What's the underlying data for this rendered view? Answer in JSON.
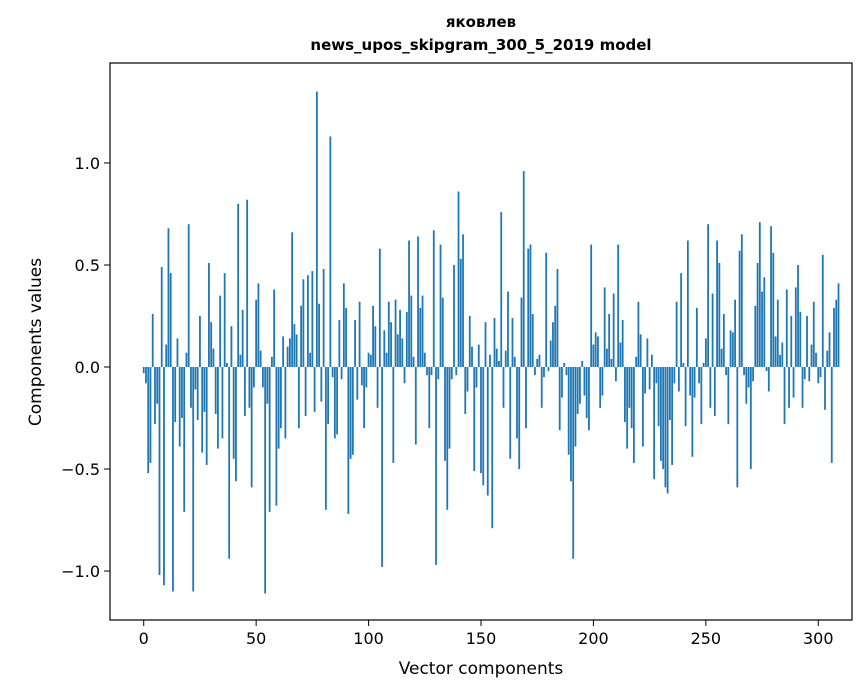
{
  "chart_data": {
    "type": "bar",
    "title_line1": "яковлев",
    "title_line2": "news_upos_skipgram_300_5_2019 model",
    "xlabel": "Vector components",
    "ylabel": "Components values",
    "xlim": [
      -15,
      315
    ],
    "ylim": [
      -1.24,
      1.49
    ],
    "xticks": [
      0,
      50,
      100,
      150,
      200,
      250,
      300
    ],
    "xtick_labels": [
      "0",
      "50",
      "100",
      "150",
      "200",
      "250",
      "300"
    ],
    "yticks": [
      -1.0,
      -0.5,
      0.0,
      0.5,
      1.0
    ],
    "ytick_labels": [
      "−1.0",
      "−0.5",
      "0.0",
      "0.5",
      "1.0"
    ],
    "bar_color": "#1f77b4",
    "grid": false,
    "values": [
      -0.03,
      -0.08,
      -0.52,
      -0.47,
      0.26,
      -0.28,
      -0.18,
      -1.02,
      0.49,
      -1.07,
      0.11,
      0.68,
      0.46,
      -1.1,
      -0.27,
      0.14,
      -0.39,
      -0.25,
      -0.71,
      0.07,
      0.7,
      -0.2,
      -1.1,
      -0.11,
      -0.26,
      0.25,
      -0.42,
      -0.22,
      -0.48,
      0.51,
      0.22,
      0.09,
      -0.23,
      -0.4,
      0.35,
      -0.35,
      0.46,
      0.02,
      -0.94,
      0.2,
      -0.45,
      -0.56,
      0.8,
      0.06,
      0.28,
      -0.24,
      0.82,
      -0.2,
      -0.59,
      -0.1,
      0.33,
      0.41,
      0.08,
      -0.1,
      -1.11,
      -0.18,
      -0.71,
      0.05,
      0.38,
      -0.68,
      -0.4,
      -0.3,
      0.15,
      -0.35,
      0.1,
      0.14,
      0.66,
      0.21,
      0.16,
      -0.3,
      0.3,
      0.43,
      -0.24,
      0.45,
      0.07,
      0.47,
      -0.22,
      1.35,
      0.31,
      -0.17,
      0.48,
      -0.7,
      -0.28,
      1.13,
      -0.05,
      -0.35,
      -0.33,
      0.23,
      -0.06,
      0.41,
      0.29,
      -0.72,
      -0.45,
      -0.43,
      0.23,
      -0.16,
      0.32,
      -0.09,
      -0.3,
      -0.1,
      0.07,
      0.06,
      0.3,
      0.2,
      -0.2,
      0.58,
      -0.98,
      0.18,
      0.07,
      0.32,
      0.22,
      -0.47,
      0.33,
      0.16,
      0.28,
      0.14,
      -0.08,
      0.27,
      0.62,
      0.35,
      0.05,
      -0.38,
      0.64,
      0.29,
      0.35,
      0.07,
      -0.04,
      -0.3,
      -0.04,
      0.67,
      -0.97,
      -0.06,
      0.6,
      0.34,
      -0.46,
      -0.7,
      -0.4,
      -0.06,
      0.5,
      -0.04,
      0.86,
      0.53,
      0.65,
      -0.23,
      -0.12,
      0.25,
      0.1,
      -0.51,
      -0.1,
      0.11,
      -0.52,
      -0.58,
      0.22,
      -0.63,
      0.06,
      -0.79,
      0.24,
      0.09,
      0.03,
      0.76,
      -0.2,
      0.08,
      0.37,
      -0.45,
      0.24,
      0.05,
      -0.35,
      -0.5,
      0.34,
      0.96,
      -0.3,
      0.58,
      0.6,
      0.26,
      -0.04,
      0.04,
      0.06,
      -0.2,
      -0.05,
      0.56,
      -0.02,
      0.13,
      0.22,
      0.3,
      0.48,
      -0.31,
      -0.15,
      0.02,
      -0.04,
      -0.43,
      -0.56,
      -0.94,
      -0.39,
      -0.23,
      -0.18,
      0.03,
      -0.14,
      -0.25,
      -0.31,
      0.6,
      0.11,
      0.17,
      0.15,
      -0.2,
      -0.14,
      0.39,
      0.09,
      0.26,
      0.04,
      0.36,
      -0.07,
      0.6,
      0.12,
      0.23,
      -0.27,
      -0.4,
      -0.2,
      -0.3,
      -0.47,
      0.05,
      0.32,
      0.16,
      -0.39,
      -0.13,
      0.14,
      -0.11,
      0.06,
      -0.55,
      -0.08,
      -0.29,
      -0.46,
      -0.5,
      -0.59,
      -0.62,
      -0.26,
      -0.48,
      -0.08,
      0.32,
      -0.12,
      0.46,
      0.02,
      -0.29,
      0.62,
      -0.14,
      -0.44,
      -0.15,
      0.29,
      -0.08,
      -0.28,
      0.02,
      0.14,
      0.7,
      -0.2,
      0.36,
      -0.24,
      0.62,
      0.51,
      0.09,
      0.26,
      -0.04,
      -0.28,
      0.18,
      0.17,
      0.33,
      -0.59,
      0.57,
      0.65,
      -0.04,
      -0.18,
      -0.1,
      -0.5,
      -0.07,
      0.3,
      0.51,
      0.71,
      0.37,
      0.44,
      -0.02,
      -0.12,
      0.69,
      0.56,
      0.15,
      0.33,
      0.06,
      0.12,
      -0.28,
      0.38,
      -0.2,
      0.25,
      -0.15,
      0.39,
      0.5,
      0.27,
      -0.2,
      -0.06,
      0.25,
      -0.07,
      0.11,
      0.32,
      0.07,
      -0.08,
      -0.05,
      0.55,
      -0.21,
      0.08,
      0.17,
      -0.47,
      0.29,
      0.33,
      0.41
    ]
  }
}
